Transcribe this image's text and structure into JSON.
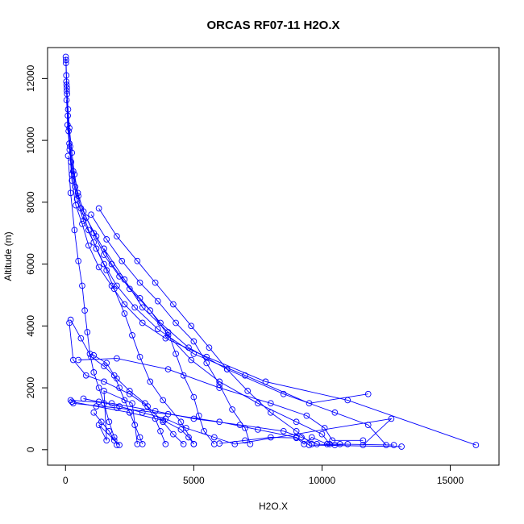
{
  "chart_data": {
    "type": "line",
    "title": "ORCAS RF07-11 H2O.X",
    "xlabel": "H2O.X",
    "ylabel": "Altitude (m)",
    "xlim": [
      -700,
      16900
    ],
    "ylim": [
      -500,
      13000
    ],
    "xticks": [
      0,
      5000,
      10000,
      15000
    ],
    "yticks": [
      0,
      2000,
      4000,
      6000,
      8000,
      10000,
      12000
    ],
    "color": "#0000ff",
    "marker": "open-circle",
    "grid": false,
    "legend": "none",
    "series": [
      {
        "points": [
          [
            10,
            12700
          ],
          [
            15,
            12500
          ],
          [
            30,
            12100
          ],
          [
            40,
            11800
          ],
          [
            60,
            11500
          ],
          [
            100,
            11000
          ],
          [
            150,
            10400
          ],
          [
            250,
            9600
          ],
          [
            350,
            8900
          ],
          [
            500,
            8200
          ],
          [
            800,
            7500
          ],
          [
            1200,
            6900
          ],
          [
            1800,
            6000
          ],
          [
            2500,
            5200
          ],
          [
            3300,
            4500
          ],
          [
            4000,
            3700
          ],
          [
            4900,
            2900
          ],
          [
            6000,
            2200
          ],
          [
            7500,
            1500
          ],
          [
            9000,
            900
          ],
          [
            10000,
            500
          ],
          [
            10300,
            180
          ]
        ]
      },
      {
        "points": [
          [
            20,
            12600
          ],
          [
            50,
            11700
          ],
          [
            90,
            10800
          ],
          [
            180,
            9800
          ],
          [
            300,
            9000
          ],
          [
            480,
            8300
          ],
          [
            700,
            7700
          ],
          [
            1100,
            7000
          ],
          [
            1500,
            6300
          ],
          [
            2100,
            5600
          ],
          [
            2900,
            4900
          ],
          [
            3700,
            4100
          ],
          [
            4800,
            3300
          ],
          [
            6300,
            2600
          ],
          [
            8500,
            1800
          ],
          [
            10500,
            1200
          ],
          [
            11800,
            800
          ],
          [
            12500,
            150
          ]
        ]
      },
      {
        "points": [
          [
            30,
            11900
          ],
          [
            80,
            10500
          ],
          [
            160,
            9700
          ],
          [
            250,
            8700
          ],
          [
            400,
            7900
          ],
          [
            650,
            7300
          ],
          [
            900,
            6600
          ],
          [
            1300,
            5900
          ],
          [
            1800,
            5300
          ],
          [
            2300,
            4700
          ],
          [
            3000,
            4100
          ],
          [
            3900,
            3600
          ],
          [
            5500,
            3000
          ],
          [
            7800,
            2200
          ],
          [
            11000,
            1600
          ],
          [
            16000,
            150
          ]
        ]
      },
      {
        "points": [
          [
            40,
            11300
          ],
          [
            120,
            10300
          ],
          [
            220,
            9300
          ],
          [
            380,
            8500
          ],
          [
            600,
            7800
          ],
          [
            900,
            7100
          ],
          [
            1200,
            6500
          ],
          [
            1600,
            5800
          ],
          [
            1900,
            5200
          ],
          [
            2300,
            4400
          ],
          [
            2600,
            3700
          ],
          [
            2900,
            3000
          ],
          [
            3300,
            2200
          ],
          [
            3800,
            1600
          ],
          [
            4500,
            900
          ],
          [
            5000,
            180
          ]
        ]
      },
      {
        "points": [
          [
            50,
            11600
          ],
          [
            150,
            9900
          ],
          [
            250,
            8900
          ],
          [
            450,
            8100
          ],
          [
            700,
            7400
          ],
          [
            1100,
            6700
          ],
          [
            1500,
            6000
          ],
          [
            2000,
            5300
          ],
          [
            2700,
            4600
          ],
          [
            3600,
            3900
          ],
          [
            5000,
            3100
          ],
          [
            7000,
            2400
          ],
          [
            9500,
            1500
          ],
          [
            11800,
            1800
          ]
        ]
      },
      {
        "points": [
          [
            100,
            9500
          ],
          [
            200,
            8300
          ],
          [
            350,
            7100
          ],
          [
            500,
            6100
          ],
          [
            650,
            5300
          ],
          [
            750,
            4500
          ],
          [
            850,
            3800
          ],
          [
            950,
            3100
          ],
          [
            1100,
            2500
          ],
          [
            1300,
            2000
          ],
          [
            1500,
            1500
          ],
          [
            1700,
            900
          ],
          [
            1900,
            400
          ],
          [
            2000,
            150
          ]
        ]
      },
      {
        "points": [
          [
            200,
            1600
          ],
          [
            1800,
            1500
          ],
          [
            3500,
            1250
          ],
          [
            5000,
            1000
          ],
          [
            6800,
            800
          ],
          [
            8500,
            600
          ],
          [
            9200,
            400
          ],
          [
            9800,
            180
          ],
          [
            10500,
            150
          ],
          [
            11000,
            180
          ]
        ]
      },
      {
        "points": [
          [
            250,
            1550
          ],
          [
            1200,
            1400
          ],
          [
            2500,
            1200
          ],
          [
            3800,
            950
          ],
          [
            4500,
            650
          ],
          [
            4800,
            400
          ],
          [
            5000,
            180
          ]
        ]
      },
      {
        "points": [
          [
            300,
            1500
          ],
          [
            2000,
            1350
          ],
          [
            4000,
            1150
          ],
          [
            6000,
            900
          ],
          [
            7500,
            650
          ],
          [
            9000,
            400
          ],
          [
            9500,
            150
          ],
          [
            13100,
            100
          ]
        ]
      },
      {
        "points": [
          [
            150,
            4100
          ],
          [
            300,
            2900
          ],
          [
            800,
            2400
          ],
          [
            1500,
            2200
          ],
          [
            2500,
            1800
          ],
          [
            3200,
            1400
          ],
          [
            3800,
            900
          ],
          [
            4200,
            500
          ],
          [
            4600,
            180
          ]
        ]
      },
      {
        "points": [
          [
            200,
            4200
          ],
          [
            600,
            3600
          ],
          [
            1000,
            3000
          ],
          [
            1500,
            2700
          ],
          [
            2000,
            2300
          ],
          [
            2500,
            1900
          ],
          [
            3100,
            1500
          ],
          [
            3500,
            1000
          ],
          [
            3700,
            600
          ],
          [
            3900,
            180
          ]
        ]
      },
      {
        "points": [
          [
            500,
            2900
          ],
          [
            2000,
            2950
          ],
          [
            4000,
            2600
          ],
          [
            6000,
            2000
          ],
          [
            8000,
            1500
          ],
          [
            9400,
            1100
          ],
          [
            10100,
            700
          ],
          [
            10400,
            300
          ],
          [
            11600,
            300
          ]
        ]
      },
      {
        "points": [
          [
            1000,
            7600
          ],
          [
            1600,
            6800
          ],
          [
            2200,
            6100
          ],
          [
            2900,
            5400
          ],
          [
            3600,
            4800
          ],
          [
            4300,
            4100
          ],
          [
            5000,
            3500
          ],
          [
            5500,
            2800
          ],
          [
            6000,
            2100
          ],
          [
            6500,
            1300
          ],
          [
            7000,
            700
          ],
          [
            7200,
            180
          ]
        ]
      },
      {
        "points": [
          [
            1300,
            7800
          ],
          [
            2000,
            6900
          ],
          [
            2800,
            6100
          ],
          [
            3500,
            5400
          ],
          [
            4200,
            4700
          ],
          [
            4900,
            4000
          ],
          [
            5600,
            3300
          ],
          [
            6300,
            2600
          ],
          [
            7100,
            1900
          ],
          [
            8000,
            1200
          ],
          [
            9000,
            600
          ],
          [
            9600,
            180
          ]
        ]
      },
      {
        "points": [
          [
            1500,
            6500
          ],
          [
            2300,
            5500
          ],
          [
            3000,
            4600
          ],
          [
            4000,
            3800
          ],
          [
            4300,
            3100
          ],
          [
            4600,
            2400
          ],
          [
            5000,
            1700
          ],
          [
            5200,
            1100
          ],
          [
            5400,
            600
          ],
          [
            5800,
            180
          ]
        ]
      },
      {
        "points": [
          [
            1100,
            3050
          ],
          [
            1600,
            2800
          ],
          [
            1900,
            2400
          ],
          [
            2100,
            2000
          ],
          [
            2300,
            1600
          ],
          [
            2500,
            1200
          ],
          [
            2700,
            800
          ],
          [
            2900,
            400
          ],
          [
            3000,
            180
          ]
        ]
      },
      {
        "points": [
          [
            700,
            1650
          ],
          [
            1300,
            1550
          ],
          [
            2100,
            1400
          ],
          [
            3000,
            1200
          ],
          [
            3900,
            1000
          ],
          [
            4700,
            700
          ],
          [
            5800,
            400
          ],
          [
            6600,
            180
          ],
          [
            12700,
            1000
          ],
          [
            11600,
            150
          ]
        ]
      },
      {
        "points": [
          [
            1100,
            1200
          ],
          [
            1400,
            900
          ],
          [
            1700,
            600
          ],
          [
            1900,
            300
          ],
          [
            2100,
            150
          ],
          [
            1300,
            800
          ],
          [
            1600,
            300
          ],
          [
            1500,
            1900
          ],
          [
            2600,
            1500
          ],
          [
            2800,
            180
          ]
        ]
      },
      {
        "points": [
          [
            6000,
            200
          ],
          [
            7000,
            300
          ],
          [
            8000,
            400
          ],
          [
            9000,
            380
          ],
          [
            9300,
            180
          ],
          [
            9600,
            400
          ],
          [
            10200,
            180
          ],
          [
            10700,
            180
          ],
          [
            12800,
            150
          ]
        ]
      }
    ]
  }
}
